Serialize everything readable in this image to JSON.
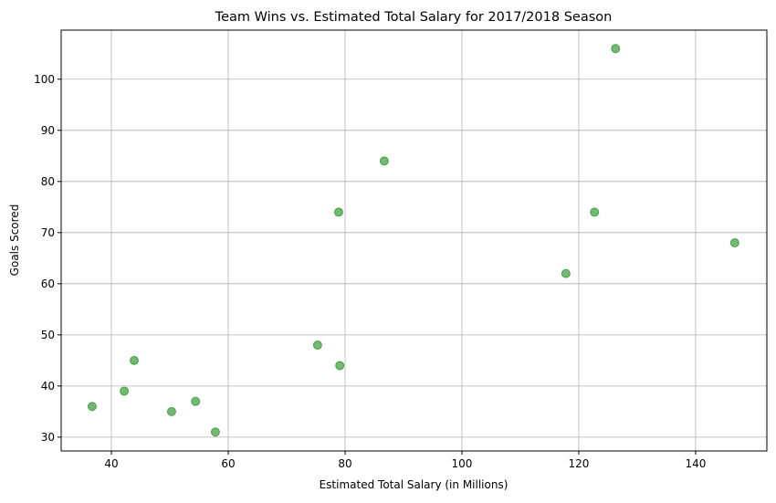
{
  "chart_data": {
    "type": "scatter",
    "title": "Team Wins vs. Estimated Total Salary for 2017/2018 Season",
    "xlabel": "Estimated Total Salary (in Millions)",
    "ylabel": "Goals Scored",
    "xlim": [
      31.4,
      152.2
    ],
    "ylim": [
      27.3,
      109.6
    ],
    "xticks": [
      40,
      60,
      80,
      100,
      120,
      140
    ],
    "yticks": [
      30,
      40,
      50,
      60,
      70,
      80,
      90,
      100
    ],
    "grid": true,
    "marker_color": "#008000",
    "points": [
      {
        "x": 36.7,
        "y": 36
      },
      {
        "x": 42.2,
        "y": 39
      },
      {
        "x": 43.9,
        "y": 45
      },
      {
        "x": 50.3,
        "y": 35
      },
      {
        "x": 54.4,
        "y": 37
      },
      {
        "x": 57.8,
        "y": 31
      },
      {
        "x": 75.3,
        "y": 48
      },
      {
        "x": 79.1,
        "y": 44
      },
      {
        "x": 78.9,
        "y": 74
      },
      {
        "x": 86.7,
        "y": 84
      },
      {
        "x": 117.8,
        "y": 62
      },
      {
        "x": 122.7,
        "y": 74
      },
      {
        "x": 126.3,
        "y": 106
      },
      {
        "x": 146.7,
        "y": 68
      }
    ]
  }
}
